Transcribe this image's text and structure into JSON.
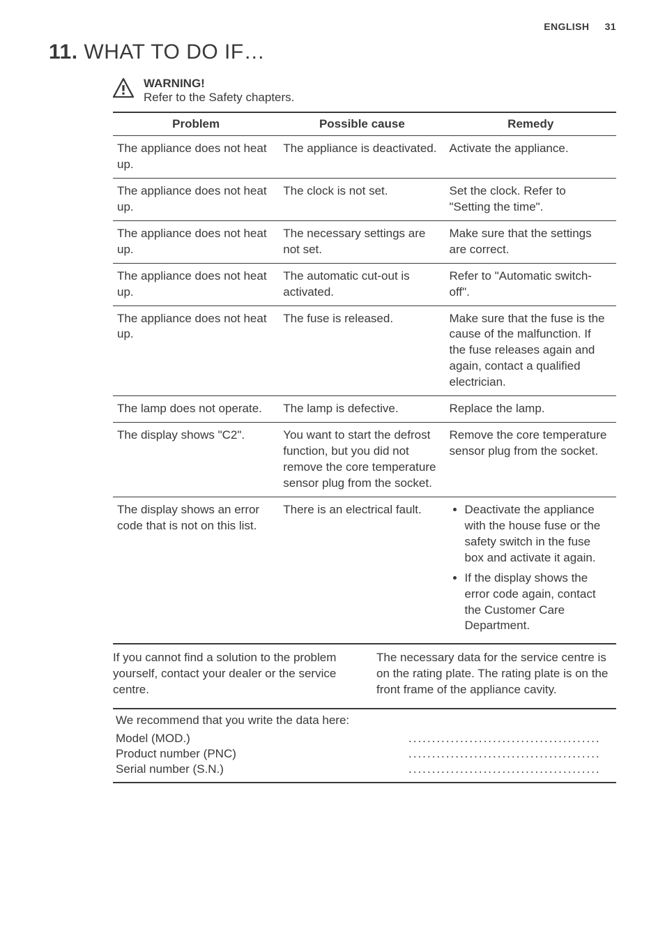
{
  "page": {
    "language": "ENGLISH",
    "number": "31"
  },
  "section": {
    "number": "11.",
    "title": "WHAT TO DO IF…"
  },
  "warning": {
    "title": "WARNING!",
    "text": "Refer to the Safety chapters."
  },
  "table": {
    "headers": [
      "Problem",
      "Possible cause",
      "Remedy"
    ],
    "rows": [
      {
        "problem": "The appliance does not heat up.",
        "cause": "The appliance is deactivated.",
        "remedy": "Activate the appliance."
      },
      {
        "problem": "The appliance does not heat up.",
        "cause": "The clock is not set.",
        "remedy": "Set the clock. Refer to \"Setting the time\"."
      },
      {
        "problem": "The appliance does not heat up.",
        "cause": "The necessary settings are not set.",
        "remedy": "Make sure that the settings are correct."
      },
      {
        "problem": "The appliance does not heat up.",
        "cause": "The automatic cut-out is activated.",
        "remedy": "Refer to \"Automatic switch-off\"."
      },
      {
        "problem": "The appliance does not heat up.",
        "cause": "The fuse is released.",
        "remedy": "Make sure that the fuse is the cause of the malfunction. If the fuse releases again and again, contact a qualified electrician."
      },
      {
        "problem": "The lamp does not operate.",
        "cause": "The lamp is defective.",
        "remedy": "Replace the lamp."
      },
      {
        "problem": "The display shows \"C2\".",
        "cause": "You want to start the defrost function, but you did not remove the core temperature sensor plug from the socket.",
        "remedy": "Remove the core temperature sensor plug from the socket."
      },
      {
        "problem": "The display shows an error code that is not on this list.",
        "cause": "There is an electrical fault.",
        "remedy_list": [
          "Deactivate the appliance with the house fuse or the safety switch in the fuse box and activate it again.",
          "If the display shows the error code again, contact the Customer Care Department."
        ]
      }
    ]
  },
  "after_text": "If you cannot find a solution to the problem yourself, contact your dealer or the service centre.\nThe necessary data for the service centre is on the rating plate. The rating plate is on the front frame of the appliance cavity.",
  "data_block": {
    "recommend": "We recommend that you write the data here:",
    "rows": [
      {
        "label": "Model (MOD.)",
        "dots": "........................................."
      },
      {
        "label": "Product number (PNC)",
        "dots": "........................................."
      },
      {
        "label": "Serial number (S.N.)",
        "dots": "........................................."
      }
    ]
  }
}
